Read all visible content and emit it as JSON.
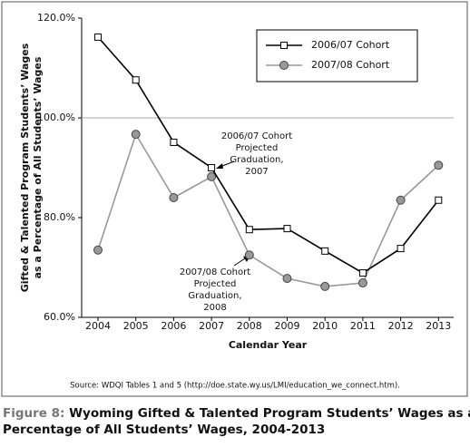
{
  "chart_data": {
    "type": "line",
    "y_label": [
      "Gifted & Talented Program Students’ Wages",
      "as a Percentage of All Students’ Wages"
    ],
    "x_label": "Calendar Year",
    "categories": [
      "2004",
      "2005",
      "2006",
      "2007",
      "2008",
      "2009",
      "2010",
      "2011",
      "2012",
      "2013"
    ],
    "series": [
      {
        "name": "2006/07 Cohort",
        "color": "#000000",
        "marker": "square",
        "values": [
          116.2,
          107.6,
          95.1,
          90.0,
          77.6,
          77.8,
          73.3,
          68.9,
          73.8,
          83.5
        ]
      },
      {
        "name": "2007/08 Cohort",
        "color": "#999999",
        "marker": "circle",
        "values": [
          73.5,
          96.7,
          84.0,
          88.2,
          72.5,
          67.8,
          66.2,
          66.9,
          83.5,
          90.5
        ]
      }
    ],
    "ylim": [
      60,
      120
    ],
    "yticks": [
      {
        "value": 60,
        "label": "60.0%"
      },
      {
        "value": 80,
        "label": "80.0%"
      },
      {
        "value": 100,
        "label": "100.0%"
      },
      {
        "value": 120,
        "label": "120.0%"
      }
    ],
    "reference_line": {
      "value": 100
    },
    "annotations": [
      {
        "lines": [
          "2006/07 Cohort",
          "Projected",
          "Graduation,",
          "2007"
        ]
      },
      {
        "lines": [
          "2007/08 Cohort",
          "Projected",
          "Graduation,",
          "2008"
        ]
      }
    ],
    "legend": "top-right",
    "source": "Source: WDQI Tables 1 and 5 (http://doe.state.wy.us/LMI/education_we_connect.htm).",
    "caption_label": "Figure 8:",
    "caption": [
      "Wyoming Gifted & Talented Program Students’ Wages as a",
      "Percentage of All Students’ Wages, 2004-2013"
    ]
  }
}
